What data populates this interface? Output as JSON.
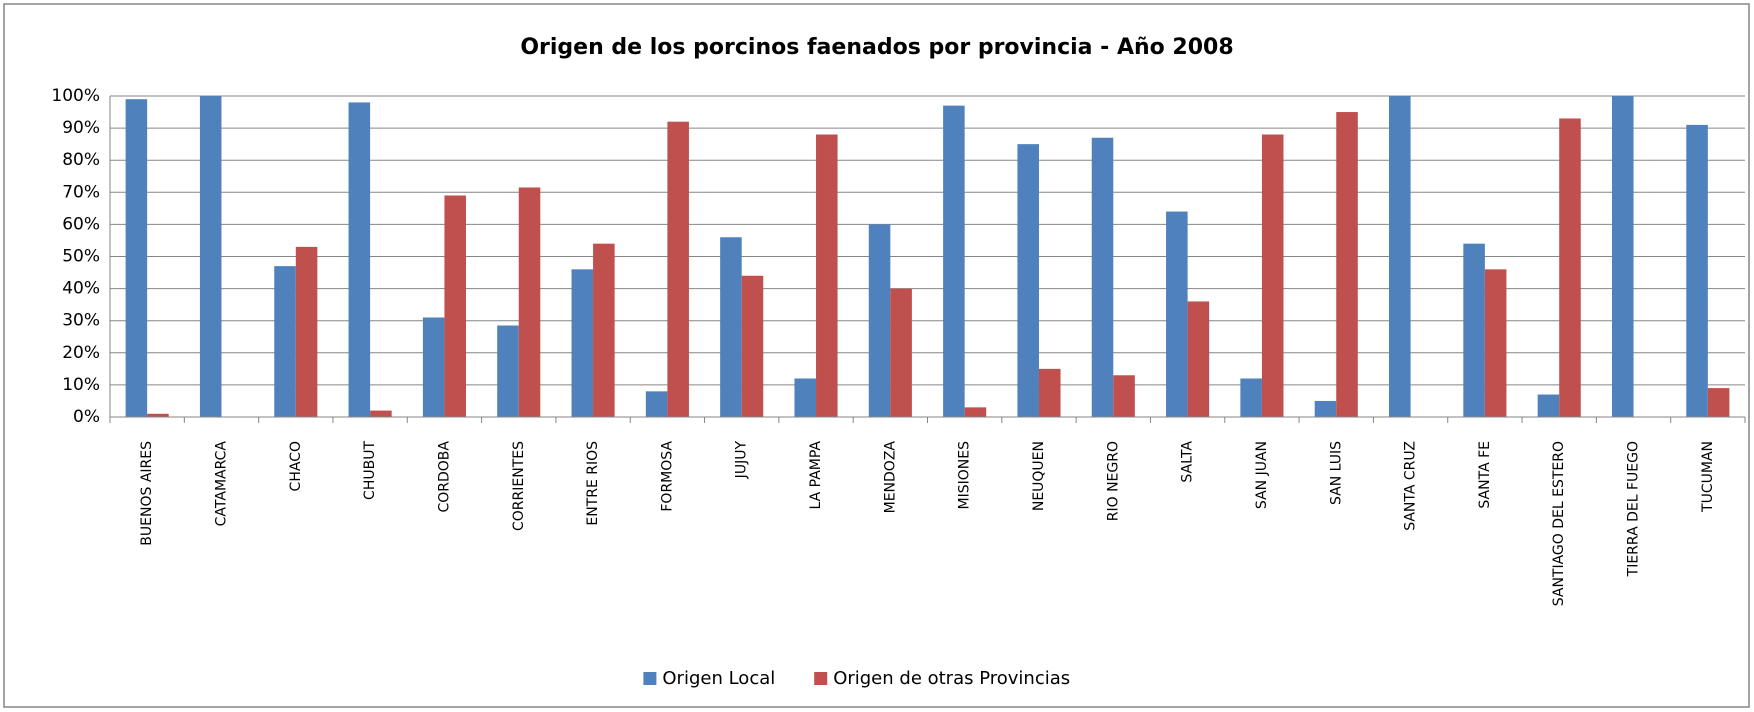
{
  "chart_data": {
    "type": "bar",
    "title": "Origen de los porcinos faenados por provincia - Año 2008",
    "categories": [
      "BUENOS AIRES",
      "CATAMARCA",
      "CHACO",
      "CHUBUT",
      "CORDOBA",
      "CORRIENTES",
      "ENTRE RIOS",
      "FORMOSA",
      "JUJUY",
      "LA PAMPA",
      "MENDOZA",
      "MISIONES",
      "NEUQUEN",
      "RIO NEGRO",
      "SALTA",
      "SAN JUAN",
      "SAN LUIS",
      "SANTA CRUZ",
      "SANTA FE",
      "SANTIAGO DEL ESTERO",
      "TIERRA DEL FUEGO",
      "TUCUMAN"
    ],
    "series": [
      {
        "name": "Origen Local",
        "color": "#4f81bd",
        "values": [
          99,
          100,
          47,
          98,
          31,
          28.5,
          46,
          8,
          56,
          12,
          60,
          97,
          85,
          87,
          64,
          12,
          5,
          100,
          54,
          7,
          100,
          91
        ]
      },
      {
        "name": "Origen de otras Provincias",
        "color": "#c0504d",
        "values": [
          1,
          0,
          53,
          2,
          69,
          71.5,
          54,
          92,
          44,
          88,
          40,
          3,
          15,
          13,
          36,
          88,
          95,
          0,
          46,
          93,
          0,
          9
        ]
      }
    ],
    "ylim": [
      0,
      100
    ],
    "yticks": [
      {
        "value": 0,
        "label": "0%"
      },
      {
        "value": 10,
        "label": "10%"
      },
      {
        "value": 20,
        "label": "20%"
      },
      {
        "value": 30,
        "label": "30%"
      },
      {
        "value": 40,
        "label": "40%"
      },
      {
        "value": 50,
        "label": "50%"
      },
      {
        "value": 60,
        "label": "60%"
      },
      {
        "value": 70,
        "label": "70%"
      },
      {
        "value": 80,
        "label": "80%"
      },
      {
        "value": 90,
        "label": "90%"
      },
      {
        "value": 100,
        "label": "100%"
      }
    ],
    "grid": true,
    "legend": "bottom"
  }
}
